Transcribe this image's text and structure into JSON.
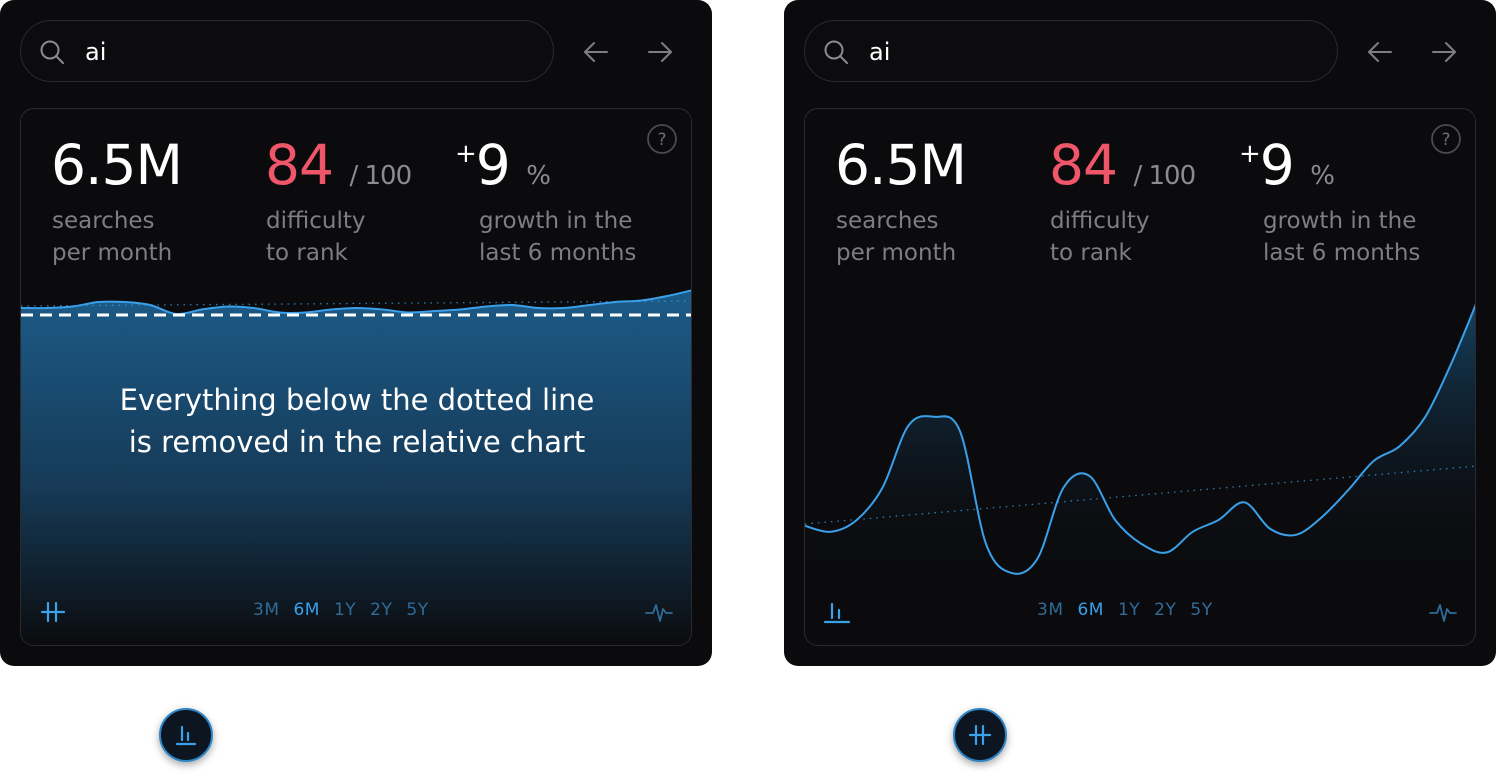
{
  "panels": [
    {
      "search": {
        "value": "ai"
      },
      "stats": {
        "searches": {
          "value": "6.5M",
          "label_line1": "searches",
          "label_line2": "per month"
        },
        "difficulty": {
          "value": "84",
          "suffix": "/ 100",
          "label_line1": "difficulty",
          "label_line2": "to rank"
        },
        "growth": {
          "prefix": "+",
          "value": "9",
          "suffix": "%",
          "label_line1": "growth in the",
          "label_line2": "last 6 months"
        }
      },
      "chart_note_line1": "Everything below the dotted line",
      "chart_note_line2": "is removed in the relative chart",
      "ranges": [
        {
          "label": "3M",
          "active": false
        },
        {
          "label": "6M",
          "active": true
        },
        {
          "label": "1Y",
          "active": false
        },
        {
          "label": "2Y",
          "active": false
        },
        {
          "label": "5Y",
          "active": false
        }
      ],
      "mode": "absolute"
    },
    {
      "search": {
        "value": "ai"
      },
      "stats": {
        "searches": {
          "value": "6.5M",
          "label_line1": "searches",
          "label_line2": "per month"
        },
        "difficulty": {
          "value": "84",
          "suffix": "/ 100",
          "label_line1": "difficulty",
          "label_line2": "to rank"
        },
        "growth": {
          "prefix": "+",
          "value": "9",
          "suffix": "%",
          "label_line1": "growth in the",
          "label_line2": "last 6 months"
        }
      },
      "ranges": [
        {
          "label": "3M",
          "active": false
        },
        {
          "label": "6M",
          "active": true
        },
        {
          "label": "1Y",
          "active": false
        },
        {
          "label": "2Y",
          "active": false
        },
        {
          "label": "5Y",
          "active": false
        }
      ],
      "mode": "relative"
    }
  ],
  "colors": {
    "accent": "#3aa0ea",
    "difficulty": "#f0566a",
    "muted": "#7d7e84",
    "range_inactive": "#2f6c99"
  },
  "icons": {
    "search": "search-icon",
    "back": "arrow-left-icon",
    "forward": "arrow-right-icon",
    "help": "question-mark-icon",
    "mode_absolute": "absolute-chart-icon",
    "mode_relative": "relative-chart-icon",
    "trend": "pulse-icon"
  },
  "chart_data": [
    {
      "type": "area",
      "mode": "absolute",
      "x": [
        0,
        1,
        2,
        3,
        4,
        5,
        6,
        7,
        8,
        9,
        10,
        11,
        12,
        13,
        14,
        15,
        16,
        17,
        18,
        19,
        20,
        21,
        22,
        23,
        24,
        25,
        26
      ],
      "series": [
        {
          "values": [
            0.93,
            0.93,
            0.935,
            0.95,
            0.95,
            0.94,
            0.91,
            0.925,
            0.935,
            0.93,
            0.915,
            0.915,
            0.925,
            0.93,
            0.925,
            0.915,
            0.92,
            0.925,
            0.935,
            0.94,
            0.93,
            0.93,
            0.94,
            0.95,
            0.955,
            0.97,
            0.99
          ]
        }
      ],
      "cutoff": 0.9,
      "ylim": [
        0,
        1
      ]
    },
    {
      "type": "area",
      "mode": "relative",
      "x": [
        0,
        1,
        2,
        3,
        4,
        5,
        6,
        7,
        8,
        9,
        10,
        11,
        12,
        13,
        14,
        15,
        16,
        17,
        18,
        19,
        20,
        21,
        22,
        23,
        24,
        25,
        26
      ],
      "series": [
        {
          "values": [
            0.18,
            0.16,
            0.2,
            0.31,
            0.52,
            0.55,
            0.5,
            0.12,
            0.02,
            0.07,
            0.31,
            0.35,
            0.2,
            0.12,
            0.09,
            0.16,
            0.2,
            0.26,
            0.17,
            0.15,
            0.21,
            0.3,
            0.4,
            0.45,
            0.55,
            0.73,
            0.94
          ]
        }
      ],
      "ylim": [
        0,
        1
      ]
    }
  ]
}
